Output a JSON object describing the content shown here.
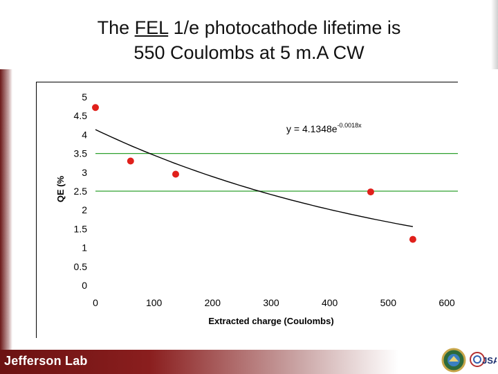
{
  "title": {
    "prefix": "The ",
    "underlined": "FEL",
    "rest_line1": " 1/e photocathode lifetime is",
    "line2": "550 Coulombs at 5 m.A CW"
  },
  "footer": {
    "logo_text": "Jefferson Lab",
    "seal_icon": "doe-seal-icon",
    "jsa_logo_text": "JSA"
  },
  "colors": {
    "points": "#e0201b",
    "gridlines": "#2ea02e",
    "trendline": "#000000",
    "footer_dark": "#6b1212"
  },
  "chart_data": {
    "type": "scatter",
    "xlabel": "Extracted charge (Coulombs)",
    "ylabel": "QE (%",
    "xlim": [
      0,
      600
    ],
    "ylim": [
      0,
      5
    ],
    "xticks": [
      0,
      100,
      200,
      300,
      400,
      500,
      600
    ],
    "yticks": [
      0,
      0.5,
      1,
      1.5,
      2,
      2.5,
      3,
      3.5,
      4,
      4.5,
      5
    ],
    "ytick_labels": [
      "0",
      "0.5",
      "1",
      "1.5",
      "2",
      "2.5",
      "3",
      "3.5",
      "4",
      "4.5",
      "5"
    ],
    "gridlines_y": [
      3.5,
      2.5
    ],
    "points": [
      {
        "x": 0,
        "y": 4.72
      },
      {
        "x": 60,
        "y": 3.3
      },
      {
        "x": 137,
        "y": 2.95
      },
      {
        "x": 470,
        "y": 2.48
      },
      {
        "x": 542,
        "y": 1.22
      }
    ],
    "trendline": {
      "type": "exponential",
      "a": 4.1348,
      "b": -0.0018,
      "x_range": [
        0,
        542
      ]
    },
    "equation_base": "y = 4.1348e",
    "equation_exponent": "-0.0018x"
  }
}
